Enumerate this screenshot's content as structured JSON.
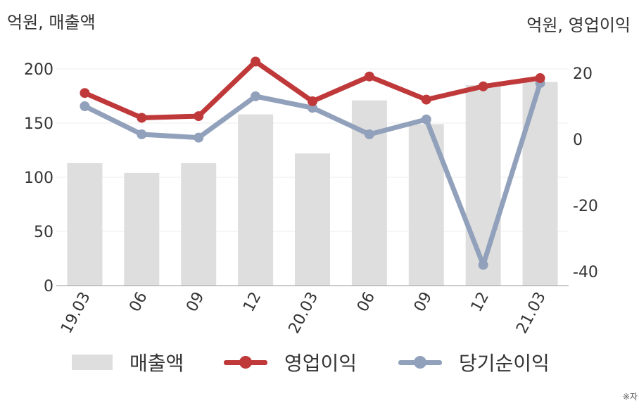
{
  "chart_data": {
    "type": "bar+line",
    "categories": [
      "19.03",
      "06",
      "09",
      "12",
      "20.03",
      "06",
      "09",
      "12",
      "21.03"
    ],
    "left_axis": {
      "unit": "억원, 매출액",
      "ylim": [
        0,
        200
      ],
      "ticks": [
        "0",
        "50",
        "100",
        "150",
        "200"
      ]
    },
    "right_axis": {
      "unit": "억원, 영업이익",
      "ylim": [
        -40,
        20
      ],
      "ticks": [
        "-40",
        "-20",
        "0",
        "20"
      ]
    },
    "bars": {
      "name": "매출액",
      "color": "#dedede",
      "values": [
        113,
        104,
        113,
        158,
        122,
        171,
        149,
        185,
        188
      ]
    },
    "series": [
      {
        "name": "영업이익",
        "color": "#c0393a",
        "axis": "right",
        "values": [
          14,
          6.5,
          7,
          23.5,
          11.5,
          19,
          12,
          16,
          18.5
        ]
      },
      {
        "name": "당기순이익",
        "color": "#92a1bb",
        "axis": "right",
        "values": [
          10,
          1.5,
          0.5,
          13,
          9.5,
          1.5,
          6,
          -38,
          17
        ]
      }
    ],
    "grid": true,
    "legend": "bottom"
  },
  "note": "※자"
}
